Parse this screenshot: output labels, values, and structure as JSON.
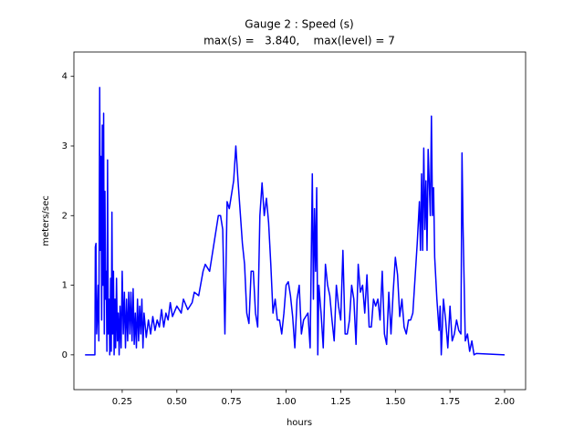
{
  "chart_data": {
    "type": "line",
    "title": "Gauge 2 : Speed (s)",
    "subtitle": "max(s) =   3.840,    max(level) = 7",
    "xlabel": "hours",
    "ylabel": "meters/sec",
    "xlim": [
      0.029,
      2.096
    ],
    "ylim": [
      -0.5,
      4.35
    ],
    "xticks": [
      0.25,
      {
        "value": 0.5,
        "label": "0.50"
      },
      0.75,
      {
        "value": 1.0,
        "label": "1.00"
      },
      1.25,
      {
        "value": 1.5,
        "label": "1.50"
      },
      1.75,
      {
        "value": 2.0,
        "label": "2.00"
      }
    ],
    "yticks": [
      0,
      1,
      2,
      3,
      4
    ],
    "x": [
      0.08,
      0.125,
      0.127,
      0.13,
      0.133,
      0.137,
      0.14,
      0.143,
      0.147,
      0.15,
      0.153,
      0.156,
      0.159,
      0.162,
      0.165,
      0.168,
      0.171,
      0.174,
      0.177,
      0.18,
      0.183,
      0.186,
      0.19,
      0.193,
      0.197,
      0.2,
      0.203,
      0.206,
      0.21,
      0.213,
      0.217,
      0.22,
      0.224,
      0.228,
      0.232,
      0.236,
      0.24,
      0.245,
      0.25,
      0.255,
      0.26,
      0.265,
      0.27,
      0.275,
      0.28,
      0.285,
      0.29,
      0.295,
      0.3,
      0.305,
      0.31,
      0.315,
      0.32,
      0.325,
      0.33,
      0.335,
      0.34,
      0.345,
      0.35,
      0.36,
      0.37,
      0.38,
      0.39,
      0.4,
      0.41,
      0.42,
      0.43,
      0.44,
      0.45,
      0.46,
      0.47,
      0.48,
      0.5,
      0.52,
      0.53,
      0.55,
      0.57,
      0.58,
      0.6,
      0.62,
      0.63,
      0.65,
      0.67,
      0.69,
      0.7,
      0.71,
      0.72,
      0.73,
      0.74,
      0.76,
      0.77,
      0.78,
      0.8,
      0.81,
      0.82,
      0.83,
      0.84,
      0.85,
      0.86,
      0.87,
      0.88,
      0.89,
      0.9,
      0.91,
      0.92,
      0.93,
      0.94,
      0.95,
      0.96,
      0.97,
      0.98,
      0.99,
      1.0,
      1.01,
      1.02,
      1.03,
      1.04,
      1.05,
      1.06,
      1.07,
      1.08,
      1.09,
      1.1,
      1.11,
      1.12,
      1.125,
      1.13,
      1.135,
      1.14,
      1.145,
      1.15,
      1.16,
      1.17,
      1.18,
      1.19,
      1.2,
      1.21,
      1.22,
      1.23,
      1.24,
      1.25,
      1.26,
      1.27,
      1.28,
      1.29,
      1.3,
      1.31,
      1.32,
      1.33,
      1.34,
      1.35,
      1.36,
      1.37,
      1.38,
      1.39,
      1.4,
      1.41,
      1.42,
      1.43,
      1.44,
      1.45,
      1.46,
      1.47,
      1.48,
      1.49,
      1.5,
      1.51,
      1.52,
      1.53,
      1.54,
      1.55,
      1.56,
      1.57,
      1.58,
      1.6,
      1.61,
      1.615,
      1.62,
      1.625,
      1.63,
      1.635,
      1.64,
      1.645,
      1.65,
      1.66,
      1.665,
      1.67,
      1.675,
      1.68,
      1.69,
      1.7,
      1.705,
      1.71,
      1.72,
      1.73,
      1.74,
      1.75,
      1.76,
      1.77,
      1.78,
      1.79,
      1.8,
      1.805,
      1.81,
      1.82,
      1.83,
      1.84,
      1.85,
      1.86,
      1.87,
      2.0
    ],
    "series": [
      {
        "color": "#0000ff",
        "values": [
          0,
          0,
          1.55,
          1.6,
          0.3,
          0.6,
          1.0,
          0.2,
          3.84,
          1.5,
          2.85,
          0.5,
          3.3,
          1.0,
          3.47,
          0.3,
          2.35,
          0.8,
          1.2,
          0.05,
          2.8,
          0.3,
          0.8,
          0.0,
          1.1,
          0.05,
          2.05,
          0.3,
          1.2,
          0.0,
          0.8,
          0.1,
          1.1,
          0.2,
          0.6,
          0.0,
          0.7,
          0.1,
          1.2,
          0.3,
          0.9,
          0.1,
          0.8,
          0.2,
          0.9,
          0.3,
          0.9,
          0.2,
          0.95,
          0.15,
          0.6,
          0.1,
          0.8,
          0.2,
          0.7,
          0.3,
          0.8,
          0.1,
          0.6,
          0.25,
          0.5,
          0.3,
          0.55,
          0.35,
          0.5,
          0.4,
          0.65,
          0.4,
          0.6,
          0.5,
          0.75,
          0.55,
          0.7,
          0.6,
          0.8,
          0.65,
          0.75,
          0.9,
          0.85,
          1.2,
          1.3,
          1.2,
          1.6,
          2.0,
          2.0,
          1.8,
          0.3,
          2.2,
          2.1,
          2.5,
          3.0,
          2.5,
          1.6,
          1.3,
          0.6,
          0.45,
          1.2,
          1.2,
          0.6,
          0.4,
          2.0,
          2.47,
          2.0,
          2.25,
          1.9,
          1.3,
          0.6,
          0.8,
          0.5,
          0.5,
          0.3,
          0.6,
          1.0,
          1.05,
          0.85,
          0.55,
          0.1,
          0.8,
          1.0,
          0.3,
          0.5,
          0.55,
          0.6,
          0.1,
          2.6,
          0.8,
          2.1,
          1.2,
          2.4,
          0.0,
          1.0,
          0.6,
          0.1,
          1.3,
          1.0,
          0.85,
          0.5,
          0.2,
          1.0,
          0.7,
          0.5,
          1.5,
          0.3,
          0.3,
          0.5,
          1.0,
          0.8,
          0.15,
          1.3,
          0.9,
          1.0,
          0.6,
          1.15,
          0.4,
          0.4,
          0.8,
          0.7,
          0.8,
          0.5,
          1.2,
          0.3,
          0.15,
          0.9,
          0.3,
          0.9,
          1.4,
          1.15,
          0.55,
          0.8,
          0.4,
          0.3,
          0.5,
          0.5,
          0.6,
          1.6,
          2.2,
          1.5,
          2.6,
          1.5,
          2.97,
          1.8,
          2.5,
          1.5,
          2.95,
          2.0,
          3.43,
          2.0,
          2.4,
          1.4,
          0.8,
          0.35,
          0.7,
          0.0,
          0.8,
          0.5,
          0.1,
          0.7,
          0.2,
          0.3,
          0.5,
          0.35,
          0.3,
          2.9,
          1.8,
          0.2,
          0.3,
          0.05,
          0.2,
          0.0,
          0.02,
          0
        ]
      }
    ]
  }
}
